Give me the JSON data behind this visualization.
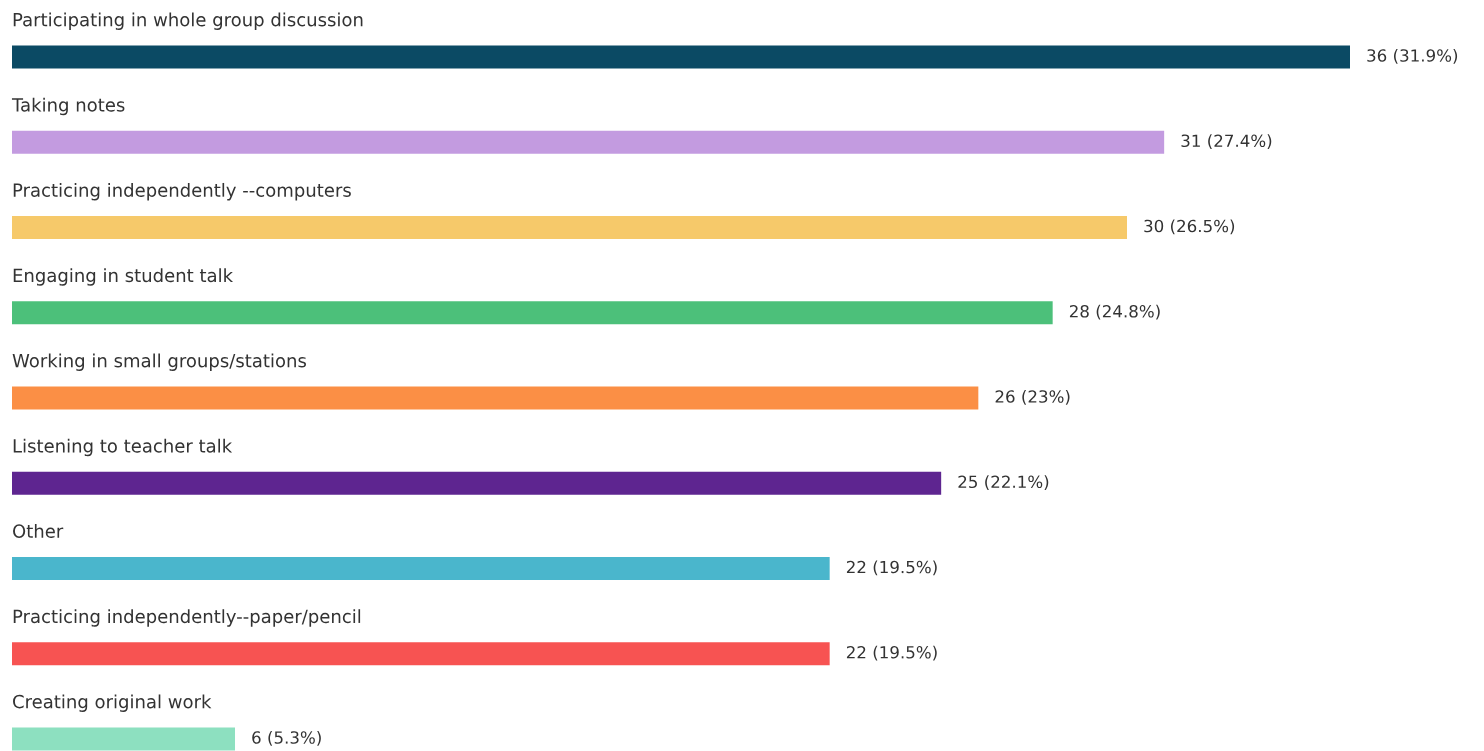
{
  "chart_data": {
    "type": "bar",
    "orientation": "horizontal",
    "categories": [
      "Participating in whole group discussion",
      "Taking notes",
      "Practicing independently --computers",
      "Engaging in student talk",
      "Working in small groups/stations",
      "Listening to teacher talk",
      "Other",
      "Practicing independently--paper/pencil",
      "Creating original work"
    ],
    "values": [
      36,
      31,
      30,
      28,
      26,
      25,
      22,
      22,
      6
    ],
    "colors": [
      "#0b4a64",
      "#c39be0",
      "#f6c96a",
      "#4cc07a",
      "#fb8f45",
      "#5e2590",
      "#4ab6cc",
      "#f75352",
      "#8de0c0"
    ],
    "value_labels": [
      "36 (31.9%)",
      "31 (27.4%)",
      "30 (26.5%)",
      "28 (24.8%)",
      "26 (23%)",
      "25 (22.1%)",
      "22 (19.5%)",
      "22 (19.5%)",
      "6 (5.3%)"
    ],
    "legend": false,
    "tick_labels": false
  }
}
